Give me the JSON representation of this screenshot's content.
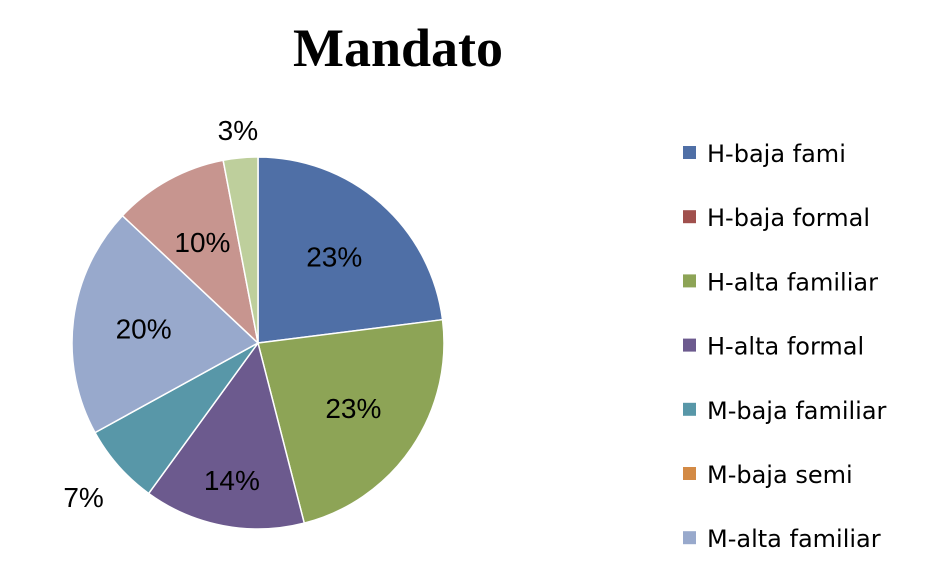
{
  "chart_data": {
    "type": "pie",
    "title": "Mandato",
    "start_angle": "12 o'clock",
    "direction": "clockwise",
    "legend_position": "right",
    "slices": [
      {
        "name": "H-baja fami",
        "value": 23,
        "label": "23%",
        "color": "#4F6FA6"
      },
      {
        "name": "H-baja formal",
        "value": 0,
        "label": "",
        "color": "#A0504D"
      },
      {
        "name": "H-alta familiar",
        "value": 23,
        "label": "23%",
        "color": "#8DA456"
      },
      {
        "name": "H-alta formal",
        "value": 14,
        "label": "14%",
        "color": "#6C5A8E"
      },
      {
        "name": "M-baja familiar",
        "value": 7,
        "label": "7%",
        "color": "#5897A8"
      },
      {
        "name": "M-baja semi",
        "value": 0,
        "label": "",
        "color": "#D38A45"
      },
      {
        "name": "M-alta familiar",
        "value": 20,
        "label": "20%",
        "color": "#98A9CC"
      },
      {
        "name": "",
        "value": 10,
        "label": "10%",
        "color": "#C7958F"
      },
      {
        "name": "",
        "value": 3,
        "label": "3%",
        "color": "#BECF9C"
      }
    ]
  }
}
